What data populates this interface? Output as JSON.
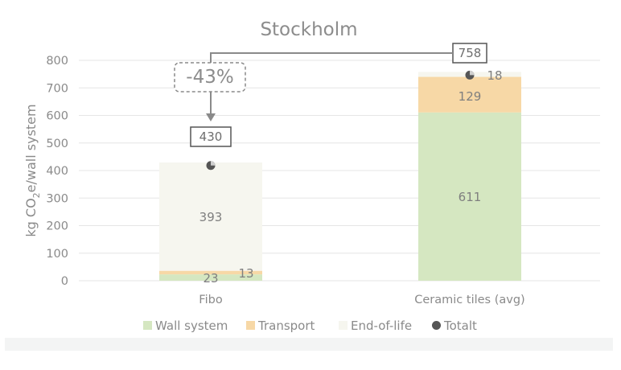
{
  "chart_data": {
    "type": "bar",
    "stacked": true,
    "title": "Stockholm",
    "ylabel_parts": [
      "kg CO",
      "2",
      "e/wall system"
    ],
    "ylim": [
      0,
      800
    ],
    "yticks": [
      0,
      100,
      200,
      300,
      400,
      500,
      600,
      700,
      800
    ],
    "grid": true,
    "legend_position": "bottom",
    "categories": [
      "Fibo",
      "Ceramic tiles (avg)"
    ],
    "series": [
      {
        "name": "Wall system",
        "values": [
          23,
          611
        ],
        "color": "#d5e7c1"
      },
      {
        "name": "Transport",
        "values": [
          13,
          129
        ],
        "color": "#f7d8a6"
      },
      {
        "name": "End-of-life",
        "values": [
          393,
          18
        ],
        "color": "#f6f6ef"
      }
    ],
    "totals_legend": "Totalt",
    "totals": [
      430,
      758
    ],
    "totals_marker_color": "#555555",
    "reduction_label": "-43%"
  }
}
